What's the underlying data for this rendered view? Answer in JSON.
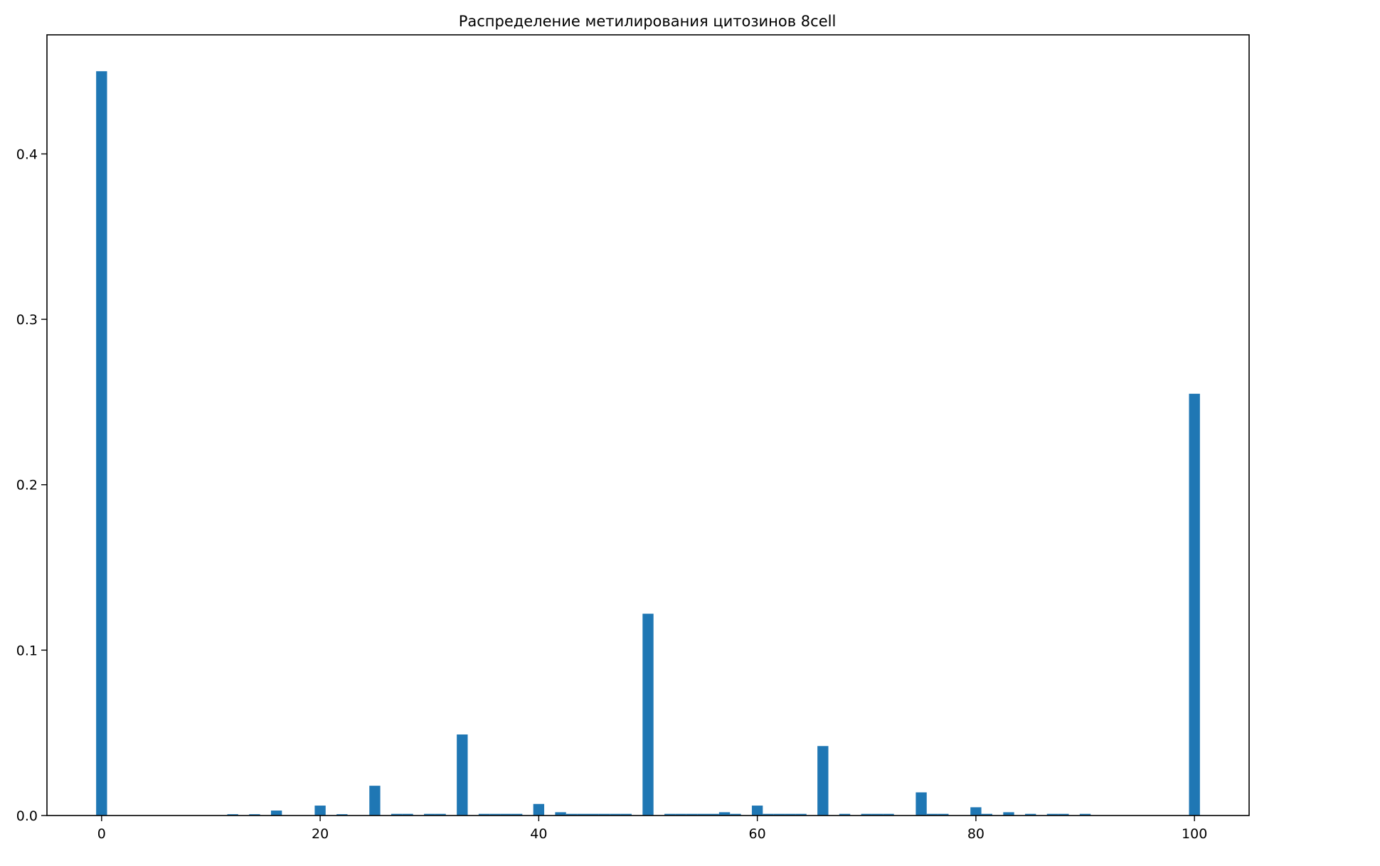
{
  "chart_data": {
    "type": "bar",
    "title": "Распределение метилирования цитозинов 8cell",
    "xlabel": "",
    "ylabel": "",
    "xlim": [
      -5,
      105
    ],
    "ylim": [
      0,
      0.472
    ],
    "x_ticks": [
      0,
      20,
      40,
      60,
      80,
      100
    ],
    "x_tick_labels": [
      "0",
      "20",
      "40",
      "60",
      "80",
      "100"
    ],
    "y_ticks": [
      0.0,
      0.1,
      0.2,
      0.3,
      0.4
    ],
    "y_tick_labels": [
      "0.0",
      "0.1",
      "0.2",
      "0.3",
      "0.4"
    ],
    "bar_width": 1,
    "grid": false,
    "bar_color": "#1f77b4",
    "x": [
      0,
      12,
      14,
      16,
      20,
      22,
      25,
      27,
      28,
      30,
      31,
      33,
      35,
      36,
      37,
      38,
      40,
      42,
      43,
      44,
      45,
      46,
      47,
      48,
      50,
      52,
      53,
      54,
      55,
      56,
      57,
      58,
      60,
      61,
      62,
      63,
      64,
      66,
      68,
      70,
      71,
      72,
      75,
      76,
      77,
      80,
      81,
      83,
      85,
      87,
      88,
      90,
      100
    ],
    "values": [
      0.45,
      0.0008,
      0.0008,
      0.003,
      0.006,
      0.0008,
      0.018,
      0.001,
      0.001,
      0.001,
      0.001,
      0.049,
      0.001,
      0.001,
      0.001,
      0.001,
      0.007,
      0.002,
      0.001,
      0.001,
      0.001,
      0.001,
      0.001,
      0.001,
      0.122,
      0.001,
      0.001,
      0.001,
      0.001,
      0.001,
      0.002,
      0.001,
      0.006,
      0.001,
      0.001,
      0.001,
      0.001,
      0.042,
      0.001,
      0.001,
      0.001,
      0.001,
      0.014,
      0.001,
      0.001,
      0.005,
      0.001,
      0.002,
      0.001,
      0.001,
      0.001,
      0.001,
      0.255
    ]
  }
}
